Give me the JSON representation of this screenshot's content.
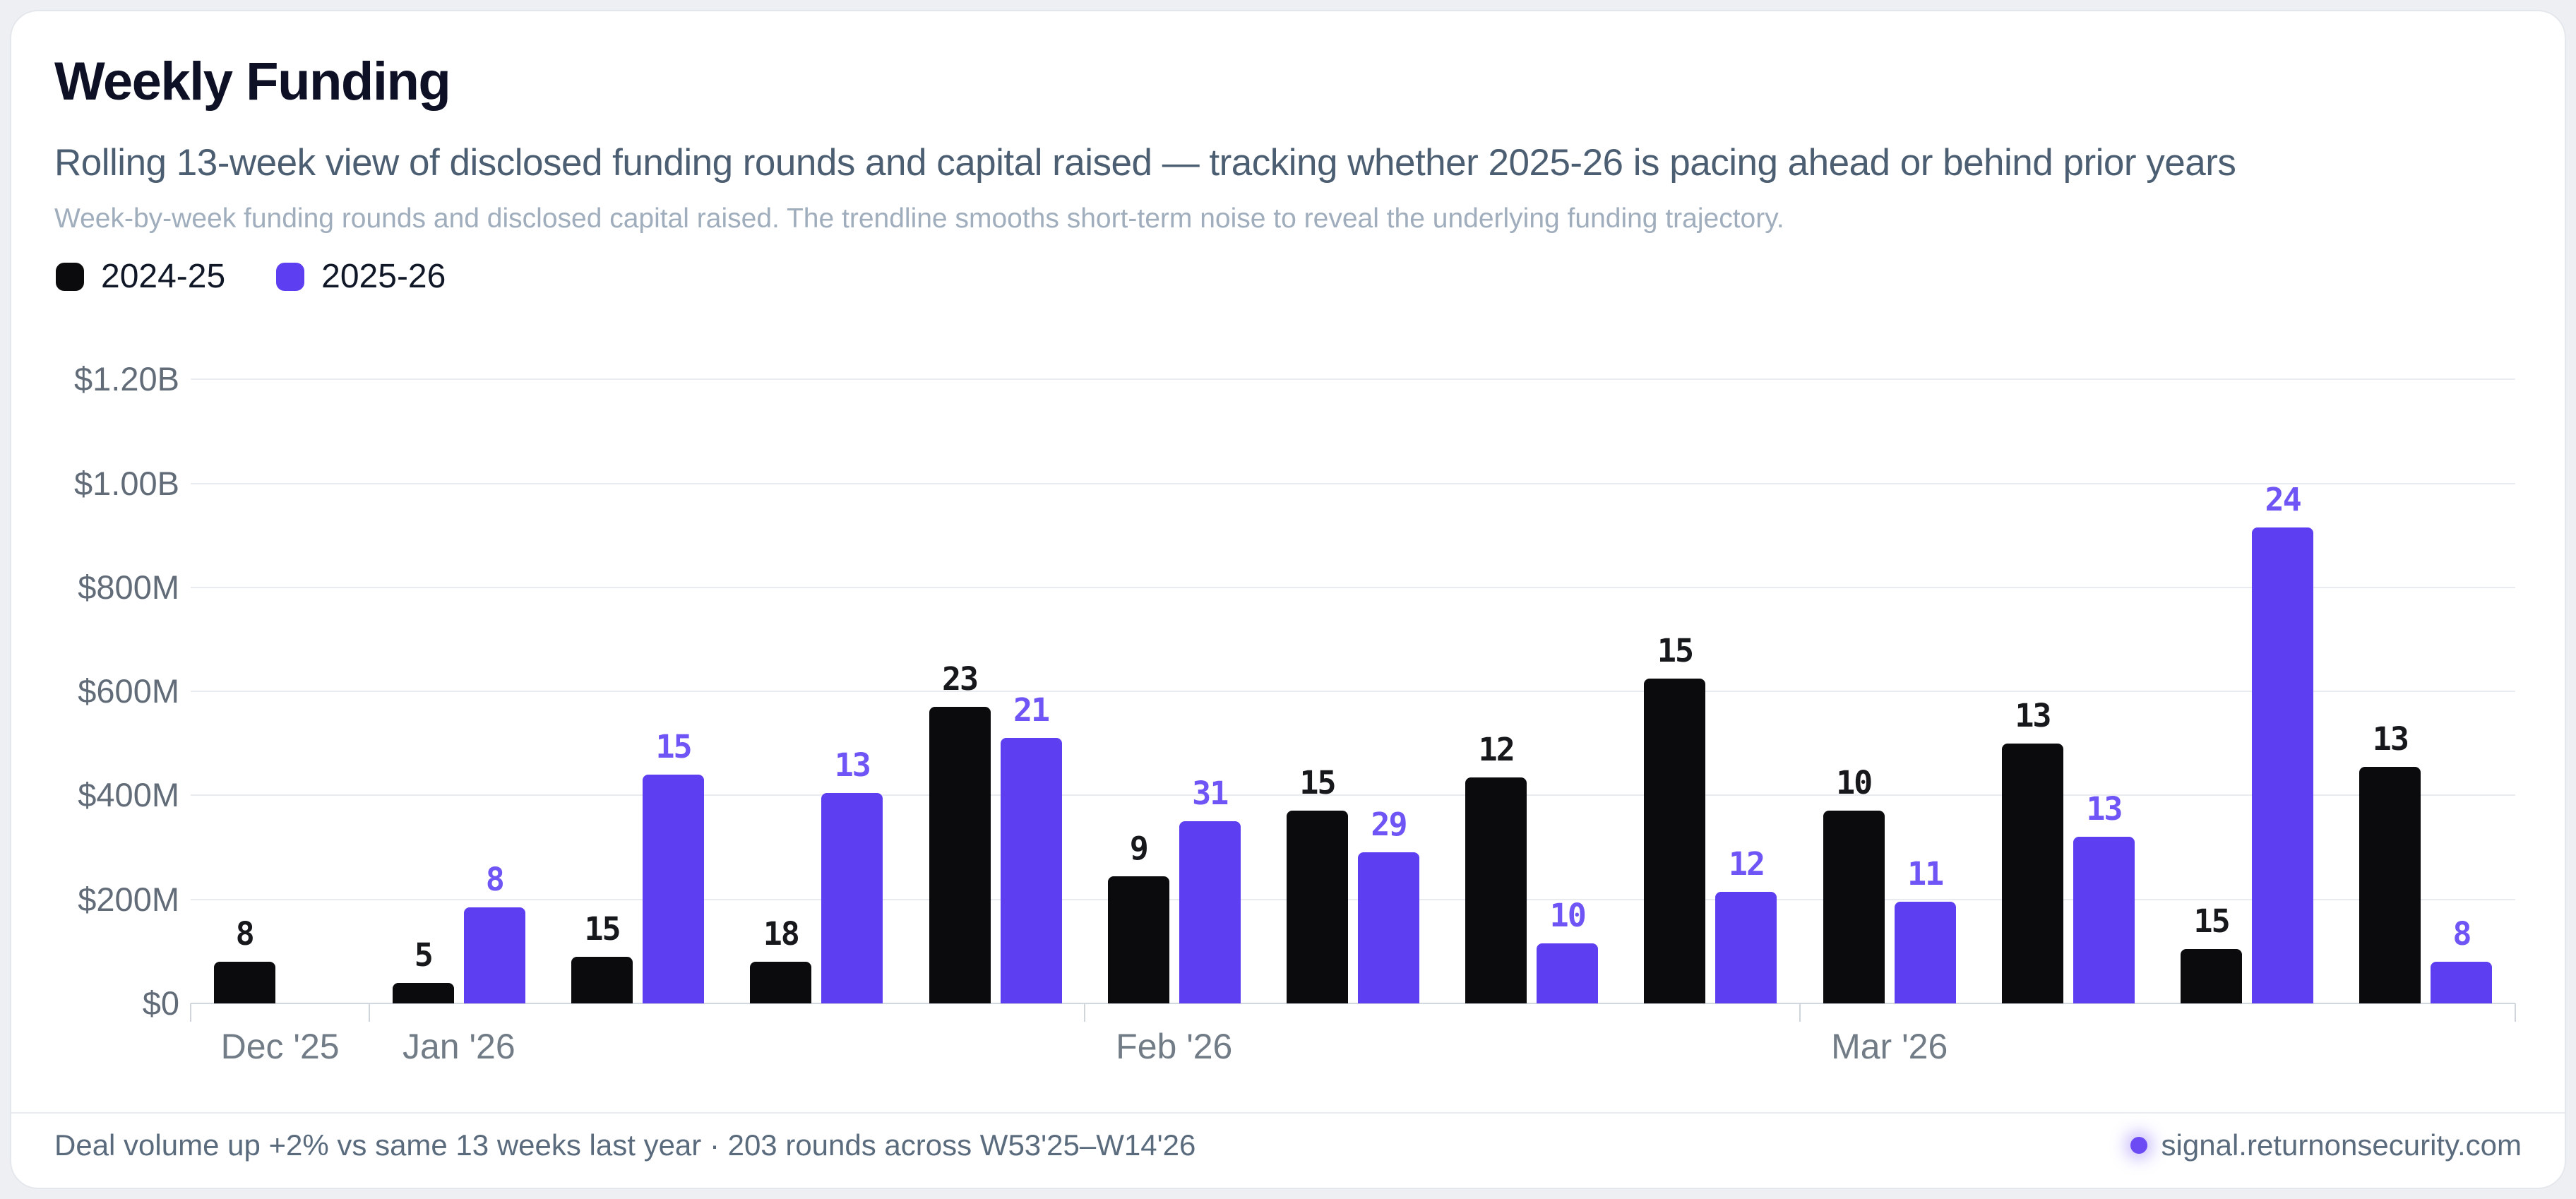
{
  "colors": {
    "accent_purple": "#5d3ef0",
    "series_black": "#0b0b0d",
    "page_background": "#edeff3",
    "card_background": "#ffffff"
  },
  "header": {
    "title": "Weekly Funding",
    "subtitle": "Rolling 13-week view of disclosed funding rounds and capital raised — tracking whether 2025-26 is pacing ahead or behind prior years",
    "description": "Week-by-week funding rounds and disclosed capital raised. The trendline smooths short-term noise to reveal the underlying funding trajectory."
  },
  "legend": {
    "items": [
      {
        "label": "2024-25",
        "color": "#0b0b0d"
      },
      {
        "label": "2025-26",
        "color": "#5d3ef0"
      }
    ]
  },
  "chart_data": {
    "type": "bar",
    "title": "Weekly Funding",
    "n_groups": 13,
    "grid": true,
    "legend_position": "top-left",
    "y_axis": {
      "unit": "USD",
      "ylim_musd": [
        0,
        1250
      ],
      "ticks": [
        {
          "value": 0,
          "label": "$0"
        },
        {
          "value": 200,
          "label": "$200M"
        },
        {
          "value": 400,
          "label": "$400M"
        },
        {
          "value": 600,
          "label": "$600M"
        },
        {
          "value": 800,
          "label": "$800M"
        },
        {
          "value": 1000,
          "label": "$1.00B"
        },
        {
          "value": 1200,
          "label": "$1.20B"
        }
      ]
    },
    "x_axis": {
      "month_labels": [
        {
          "group": 0,
          "label": "Dec '25"
        },
        {
          "group": 1,
          "label": "Jan '26"
        },
        {
          "group": 5,
          "label": "Feb '26"
        },
        {
          "group": 9,
          "label": "Mar '26"
        }
      ]
    },
    "series": [
      {
        "name": "2024-25",
        "color": "#0b0b0d",
        "label_color": "#17181c",
        "amounts_musd": [
          80,
          40,
          90,
          80,
          570,
          245,
          370,
          435,
          625,
          370,
          500,
          105,
          455
        ],
        "round_counts": [
          8,
          5,
          15,
          18,
          23,
          9,
          15,
          12,
          15,
          10,
          13,
          15,
          13
        ]
      },
      {
        "name": "2025-26",
        "color": "#5d3ef0",
        "label_color": "#6f55f5",
        "amounts_musd": [
          null,
          185,
          440,
          405,
          510,
          350,
          290,
          115,
          215,
          195,
          320,
          915,
          80
        ],
        "round_counts": [
          null,
          8,
          15,
          13,
          21,
          31,
          29,
          10,
          12,
          11,
          13,
          24,
          8
        ]
      }
    ]
  },
  "footer": {
    "summary": "Deal volume up +2% vs same 13 weeks last year · 203 rounds across W53'25–W14'26",
    "brand": "signal.returnonsecurity.com",
    "dot_color": "#6c4bf5"
  }
}
